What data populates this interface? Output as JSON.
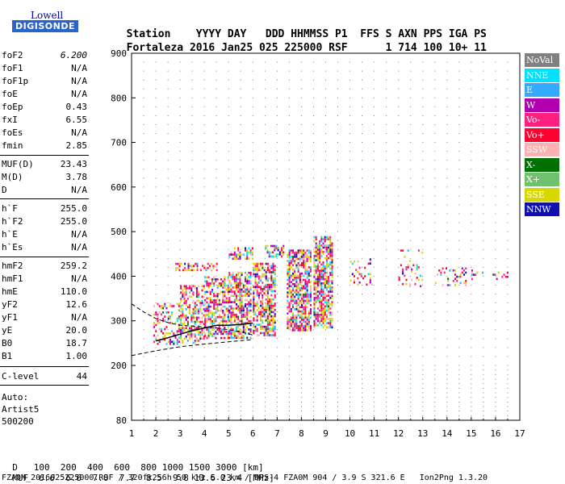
{
  "logo": {
    "top": "Lowell",
    "bottom": "DIGISONDE"
  },
  "header": {
    "labels": [
      "Station",
      "YYYY DAY",
      "DDD",
      "HHMMSS",
      "P1",
      "FFS",
      "S",
      "AXN",
      "PPS",
      "IGA",
      "PS"
    ],
    "values": [
      "Fortaleza",
      "2016 Jan25",
      "025",
      "225000",
      "RSF",
      "1",
      "714",
      "100",
      "10+",
      "11"
    ]
  },
  "params": [
    {
      "name": "foF2",
      "value": "6.200"
    },
    {
      "name": "foF1",
      "value": "N/A"
    },
    {
      "name": "foF1p",
      "value": "N/A"
    },
    {
      "name": "foE",
      "value": "N/A"
    },
    {
      "name": "foEp",
      "value": "0.43"
    },
    {
      "name": "fxI",
      "value": "6.55"
    },
    {
      "name": "foEs",
      "value": "N/A"
    },
    {
      "name": "fmin",
      "value": "2.85"
    },
    {
      "name": "MUF(D)",
      "value": "23.43"
    },
    {
      "name": "M(D)",
      "value": "3.78"
    },
    {
      "name": "D",
      "value": "N/A"
    },
    {
      "name": "h`F",
      "value": "255.0"
    },
    {
      "name": "h`F2",
      "value": "255.0"
    },
    {
      "name": "h`E",
      "value": "N/A"
    },
    {
      "name": "h`Es",
      "value": "N/A"
    },
    {
      "name": "hmF2",
      "value": "259.2"
    },
    {
      "name": "hmF1",
      "value": "N/A"
    },
    {
      "name": "hmE",
      "value": "110.0"
    },
    {
      "name": "yF2",
      "value": "12.6"
    },
    {
      "name": "yF1",
      "value": "N/A"
    },
    {
      "name": "yE",
      "value": "20.0"
    },
    {
      "name": "B0",
      "value": "18.7"
    },
    {
      "name": "B1",
      "value": "1.00"
    },
    {
      "name": "C-level",
      "value": "44"
    }
  ],
  "auto_lines": [
    "Auto:",
    "Artist5",
    "500200"
  ],
  "legend": [
    {
      "label": "NoVal",
      "color": "#808080"
    },
    {
      "label": "NNE",
      "color": "#00e0ff"
    },
    {
      "label": "E",
      "color": "#33aaff"
    },
    {
      "label": "W",
      "color": "#b000b0"
    },
    {
      "label": "Vo-",
      "color": "#ff2080"
    },
    {
      "label": "Vo+",
      "color": "#ff0030"
    },
    {
      "label": "SSW",
      "color": "#ffb0b0"
    },
    {
      "label": "X-",
      "color": "#007000"
    },
    {
      "label": "X+",
      "color": "#70c070"
    },
    {
      "label": "SSE",
      "color": "#d8d800"
    },
    {
      "label": "NNW",
      "color": "#1010b0"
    }
  ],
  "footer": {
    "d_label": "D",
    "d_values": [
      "100",
      "200",
      "400",
      "600",
      "800",
      "1000",
      "1500",
      "3000",
      "[km]"
    ],
    "muf_label": "MUF",
    "muf_values": [
      "6.6",
      "6.6",
      "7.0",
      "7.7",
      "8.5",
      "9.8",
      "13.6",
      "23.4",
      "[MHz]"
    ],
    "file_line": "FZA0M_2016025225000.RSF / 320fx256h 50 kHz 5.0 km / DPS-4 FZA0M 904 / 3.9 S 321.6 E   Ion2Png 1.3.20"
  },
  "chart_data": {
    "type": "scatter",
    "xlim": [
      1,
      17
    ],
    "ylim": [
      80,
      900
    ],
    "xticks": [
      1,
      2,
      3,
      4,
      5,
      6,
      7,
      8,
      9,
      10,
      11,
      12,
      13,
      14,
      15,
      16,
      17
    ],
    "yticks": [
      80,
      200,
      300,
      400,
      500,
      600,
      700,
      800,
      900
    ],
    "grid": true,
    "echo_clusters": [
      {
        "x": [
          1.9,
          3.0
        ],
        "y": [
          250,
          340
        ],
        "density": 0.35
      },
      {
        "x": [
          3.0,
          4.0
        ],
        "y": [
          250,
          380
        ],
        "density": 0.5
      },
      {
        "x": [
          4.0,
          5.0
        ],
        "y": [
          260,
          400
        ],
        "density": 0.55
      },
      {
        "x": [
          5.0,
          5.9
        ],
        "y": [
          260,
          410
        ],
        "density": 0.65
      },
      {
        "x": [
          6.0,
          6.9
        ],
        "y": [
          270,
          430
        ],
        "density": 0.65
      },
      {
        "x": [
          7.4,
          8.4
        ],
        "y": [
          280,
          460
        ],
        "density": 0.7
      },
      {
        "x": [
          8.5,
          9.3
        ],
        "y": [
          285,
          490
        ],
        "density": 0.7
      },
      {
        "x": [
          10.0,
          10.9
        ],
        "y": [
          380,
          440
        ],
        "density": 0.15
      },
      {
        "x": [
          12.0,
          13.0
        ],
        "y": [
          380,
          460
        ],
        "density": 0.15
      },
      {
        "x": [
          13.5,
          14.8
        ],
        "y": [
          380,
          420
        ],
        "density": 0.2
      },
      {
        "x": [
          15.0,
          16.5
        ],
        "y": [
          395,
          415
        ],
        "density": 0.12
      },
      {
        "x": [
          2.8,
          4.5
        ],
        "y": [
          415,
          430
        ],
        "density": 0.5
      },
      {
        "x": [
          5.0,
          6.0
        ],
        "y": [
          440,
          465
        ],
        "density": 0.5
      },
      {
        "x": [
          6.5,
          7.3
        ],
        "y": [
          445,
          470
        ],
        "density": 0.5
      }
    ],
    "trace_virtual": {
      "x": [
        2.0,
        2.5,
        3.0,
        3.5,
        4.0,
        4.5,
        5.0,
        5.5,
        6.0
      ],
      "y": [
        255,
        262,
        270,
        278,
        284,
        290,
        290,
        292,
        295
      ]
    },
    "profile_curve": {
      "x": [
        1.0,
        1.5,
        2.0,
        2.5,
        3.0,
        3.5,
        4.0,
        4.5,
        5.0,
        5.5,
        6.0
      ],
      "y": [
        338,
        320,
        305,
        296,
        290,
        288,
        286,
        284,
        280,
        275,
        268
      ]
    },
    "profile_lower": {
      "x": [
        1.0,
        2.0,
        3.0,
        4.0,
        5.0,
        6.0
      ],
      "y": [
        222,
        233,
        242,
        248,
        253,
        258
      ]
    }
  }
}
